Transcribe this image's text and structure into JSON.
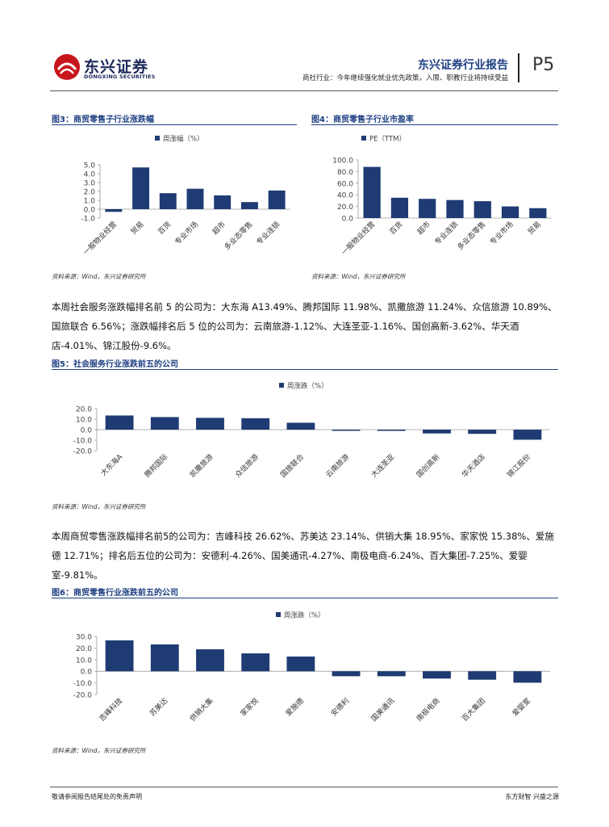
{
  "header": {
    "logo_cn": "东兴证券",
    "logo_en": "DONGXING SECURITIES",
    "report_title": "东兴证券行业报告",
    "report_subtitle": "商社行业：今年继续强化就业优先政策，入限、职教行业将持续受益",
    "page": "P5",
    "brand_color": "#c8161d"
  },
  "fig3": {
    "title": "图3：商贸零售子行业涨跌幅",
    "source": "资料来源：Wind，东兴证券研究所"
  },
  "fig4": {
    "title": "图4：商贸零售子行业市盈率",
    "source": "资料来源：Wind，东兴证券研究所"
  },
  "para1": "本周社会服务涨跌幅排名前 5 的公司为：大东海 A13.49%、腾邦国际 11.98%、凯撒旅游 11.24%、众信旅游 10.89%、国旅联合 6.56%；涨跌幅排名后 5 位的公司为：云南旅游-1.12%、大连圣亚-1.16%、国创高新-3.62%、华天酒店-4.01%、锦江股份-9.6%。",
  "fig5": {
    "title": "图5：社会服务行业涨跌前五的公司",
    "source": "资料来源：Wind，东兴证券研究所"
  },
  "para2": "本周商贸零售涨跌幅排名前5的公司为：吉峰科技 26.62%、苏美达 23.14%、供销大集 18.95%、家家悦 15.38%、爱施德 12.71%；排名后五位的公司为：安德利-4.26%、国美通讯-4.27%、南极电商-6.24%、百大集团-7.25%、爱婴室-9.81%。",
  "fig6": {
    "title": "图6：商贸零售行业涨跌前五的公司",
    "source": "资料来源：Wind，东兴证券研究所"
  },
  "footer": {
    "left": "敬请参阅报告结尾处的免责声明",
    "right": "东方财智  兴盛之源"
  },
  "chart_data": [
    {
      "id": "fig3",
      "type": "bar",
      "legend": "周涨幅（%）",
      "legend_position": "top-center",
      "categories": [
        "一般物业经营",
        "贸易",
        "百货",
        "专业市场",
        "超市",
        "多业态零售",
        "专业连锁"
      ],
      "values": [
        -0.3,
        4.7,
        1.8,
        2.3,
        1.55,
        0.8,
        2.1
      ],
      "ylim": [
        -1.0,
        5.0
      ],
      "yticks": [
        "5.0",
        "4.0",
        "3.0",
        "2.0",
        "1.0",
        "0.0",
        "-1.0"
      ],
      "yticks_num": [
        5,
        4,
        3,
        2,
        1,
        0,
        -1
      ],
      "bar_color": "#1f3b73",
      "grid": false
    },
    {
      "id": "fig4",
      "type": "bar",
      "legend": "PE（TTM）",
      "legend_position": "top-left",
      "categories": [
        "一般物业经营",
        "百货",
        "超市",
        "专业连锁",
        "多业态零售",
        "专业市场",
        "贸易"
      ],
      "values": [
        88,
        35,
        33,
        31,
        29,
        20,
        17
      ],
      "ylim": [
        0,
        100
      ],
      "yticks": [
        "100.0",
        "80.0",
        "60.0",
        "40.0",
        "20.0",
        "0.0"
      ],
      "yticks_num": [
        100,
        80,
        60,
        40,
        20,
        0
      ],
      "bar_color": "#1f3b73",
      "grid": false
    },
    {
      "id": "fig5",
      "type": "bar",
      "legend": "周涨跌（%）",
      "legend_position": "top-center",
      "categories": [
        "大东海A",
        "腾邦国际",
        "凯撒旅游",
        "众信旅游",
        "国旅联合",
        "云南旅游",
        "大连圣亚",
        "国创高新",
        "华天酒店",
        "锦江股份"
      ],
      "values": [
        13.49,
        11.98,
        11.24,
        10.89,
        6.56,
        -1.12,
        -1.16,
        -3.62,
        -4.01,
        -9.6
      ],
      "ylim": [
        -20,
        20
      ],
      "yticks": [
        "20.0",
        "10.0",
        "0.0",
        "-10.0",
        "-20.0"
      ],
      "yticks_num": [
        20,
        10,
        0,
        -10,
        -20
      ],
      "bar_color": "#1f3b73",
      "grid": false
    },
    {
      "id": "fig6",
      "type": "bar",
      "legend": "周涨跌（%）",
      "legend_position": "top-center",
      "categories": [
        "吉峰科技",
        "苏美达",
        "供销大集",
        "家家悦",
        "爱施德",
        "安德利",
        "国美通讯",
        "南极电商",
        "百大集团",
        "爱婴室"
      ],
      "values": [
        26.62,
        23.14,
        18.95,
        15.38,
        12.71,
        -4.26,
        -4.27,
        -6.24,
        -7.25,
        -9.81
      ],
      "ylim": [
        -20,
        30
      ],
      "yticks": [
        "30.0",
        "20.0",
        "10.0",
        "0.0",
        "-10.0",
        "-20.0"
      ],
      "yticks_num": [
        30,
        20,
        10,
        0,
        -10,
        -20
      ],
      "bar_color": "#1f3b73",
      "grid": false
    }
  ]
}
